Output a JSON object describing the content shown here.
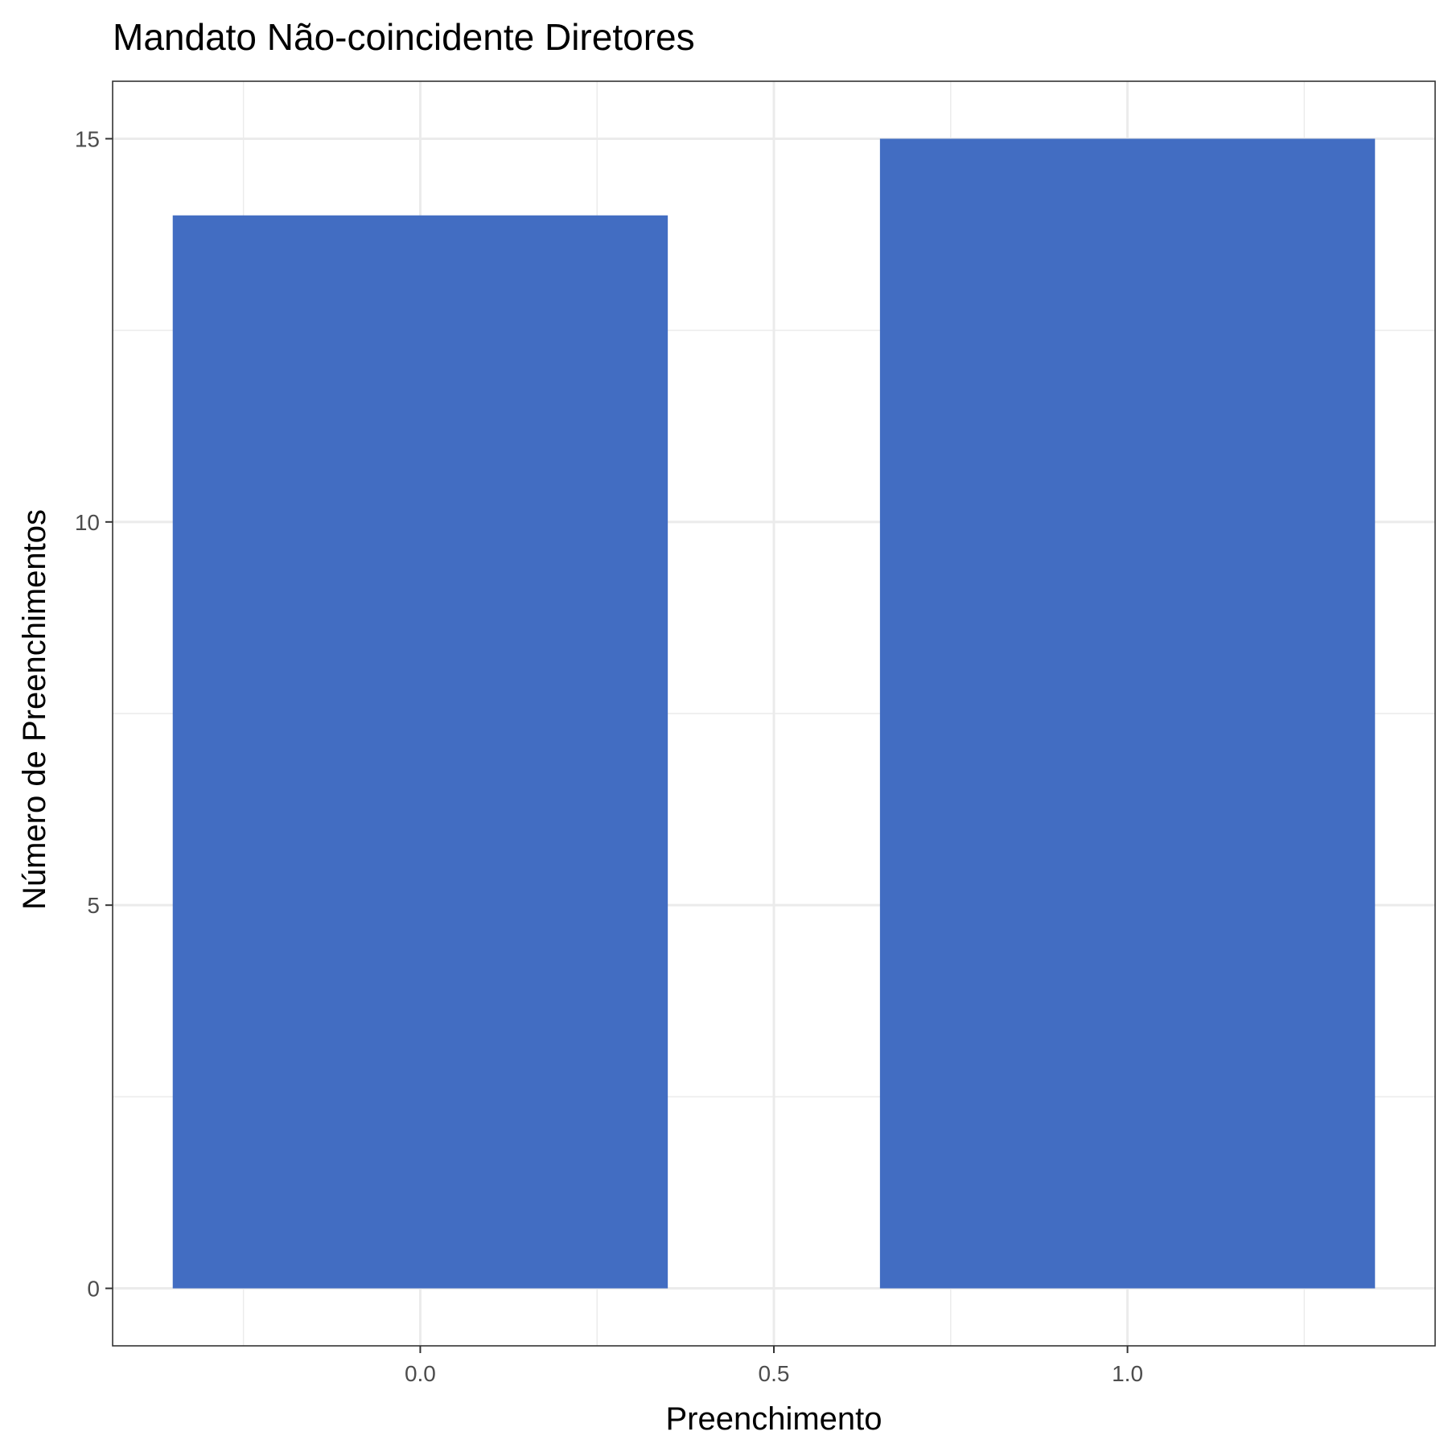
{
  "chart_data": {
    "type": "bar",
    "title": "Mandato Não-coincidente Diretores",
    "xlabel": "Preenchimento",
    "ylabel": "Número de Preenchimentos",
    "x": [
      0.0,
      1.0
    ],
    "values": [
      14,
      15
    ],
    "bar_width": 0.7,
    "xlim": [
      -0.435,
      1.435
    ],
    "ylim": [
      -0.75,
      15.75
    ],
    "x_ticks": [
      0.0,
      0.5,
      1.0
    ],
    "x_tick_labels": [
      "0.0",
      "0.5",
      "1.0"
    ],
    "y_ticks": [
      0,
      5,
      10,
      15
    ],
    "y_tick_labels": [
      "0",
      "5",
      "10",
      "15"
    ],
    "grid": true,
    "bar_color": "#426DC2",
    "grid_color": "#EBEBEB",
    "panel_border_color": "#333333"
  }
}
